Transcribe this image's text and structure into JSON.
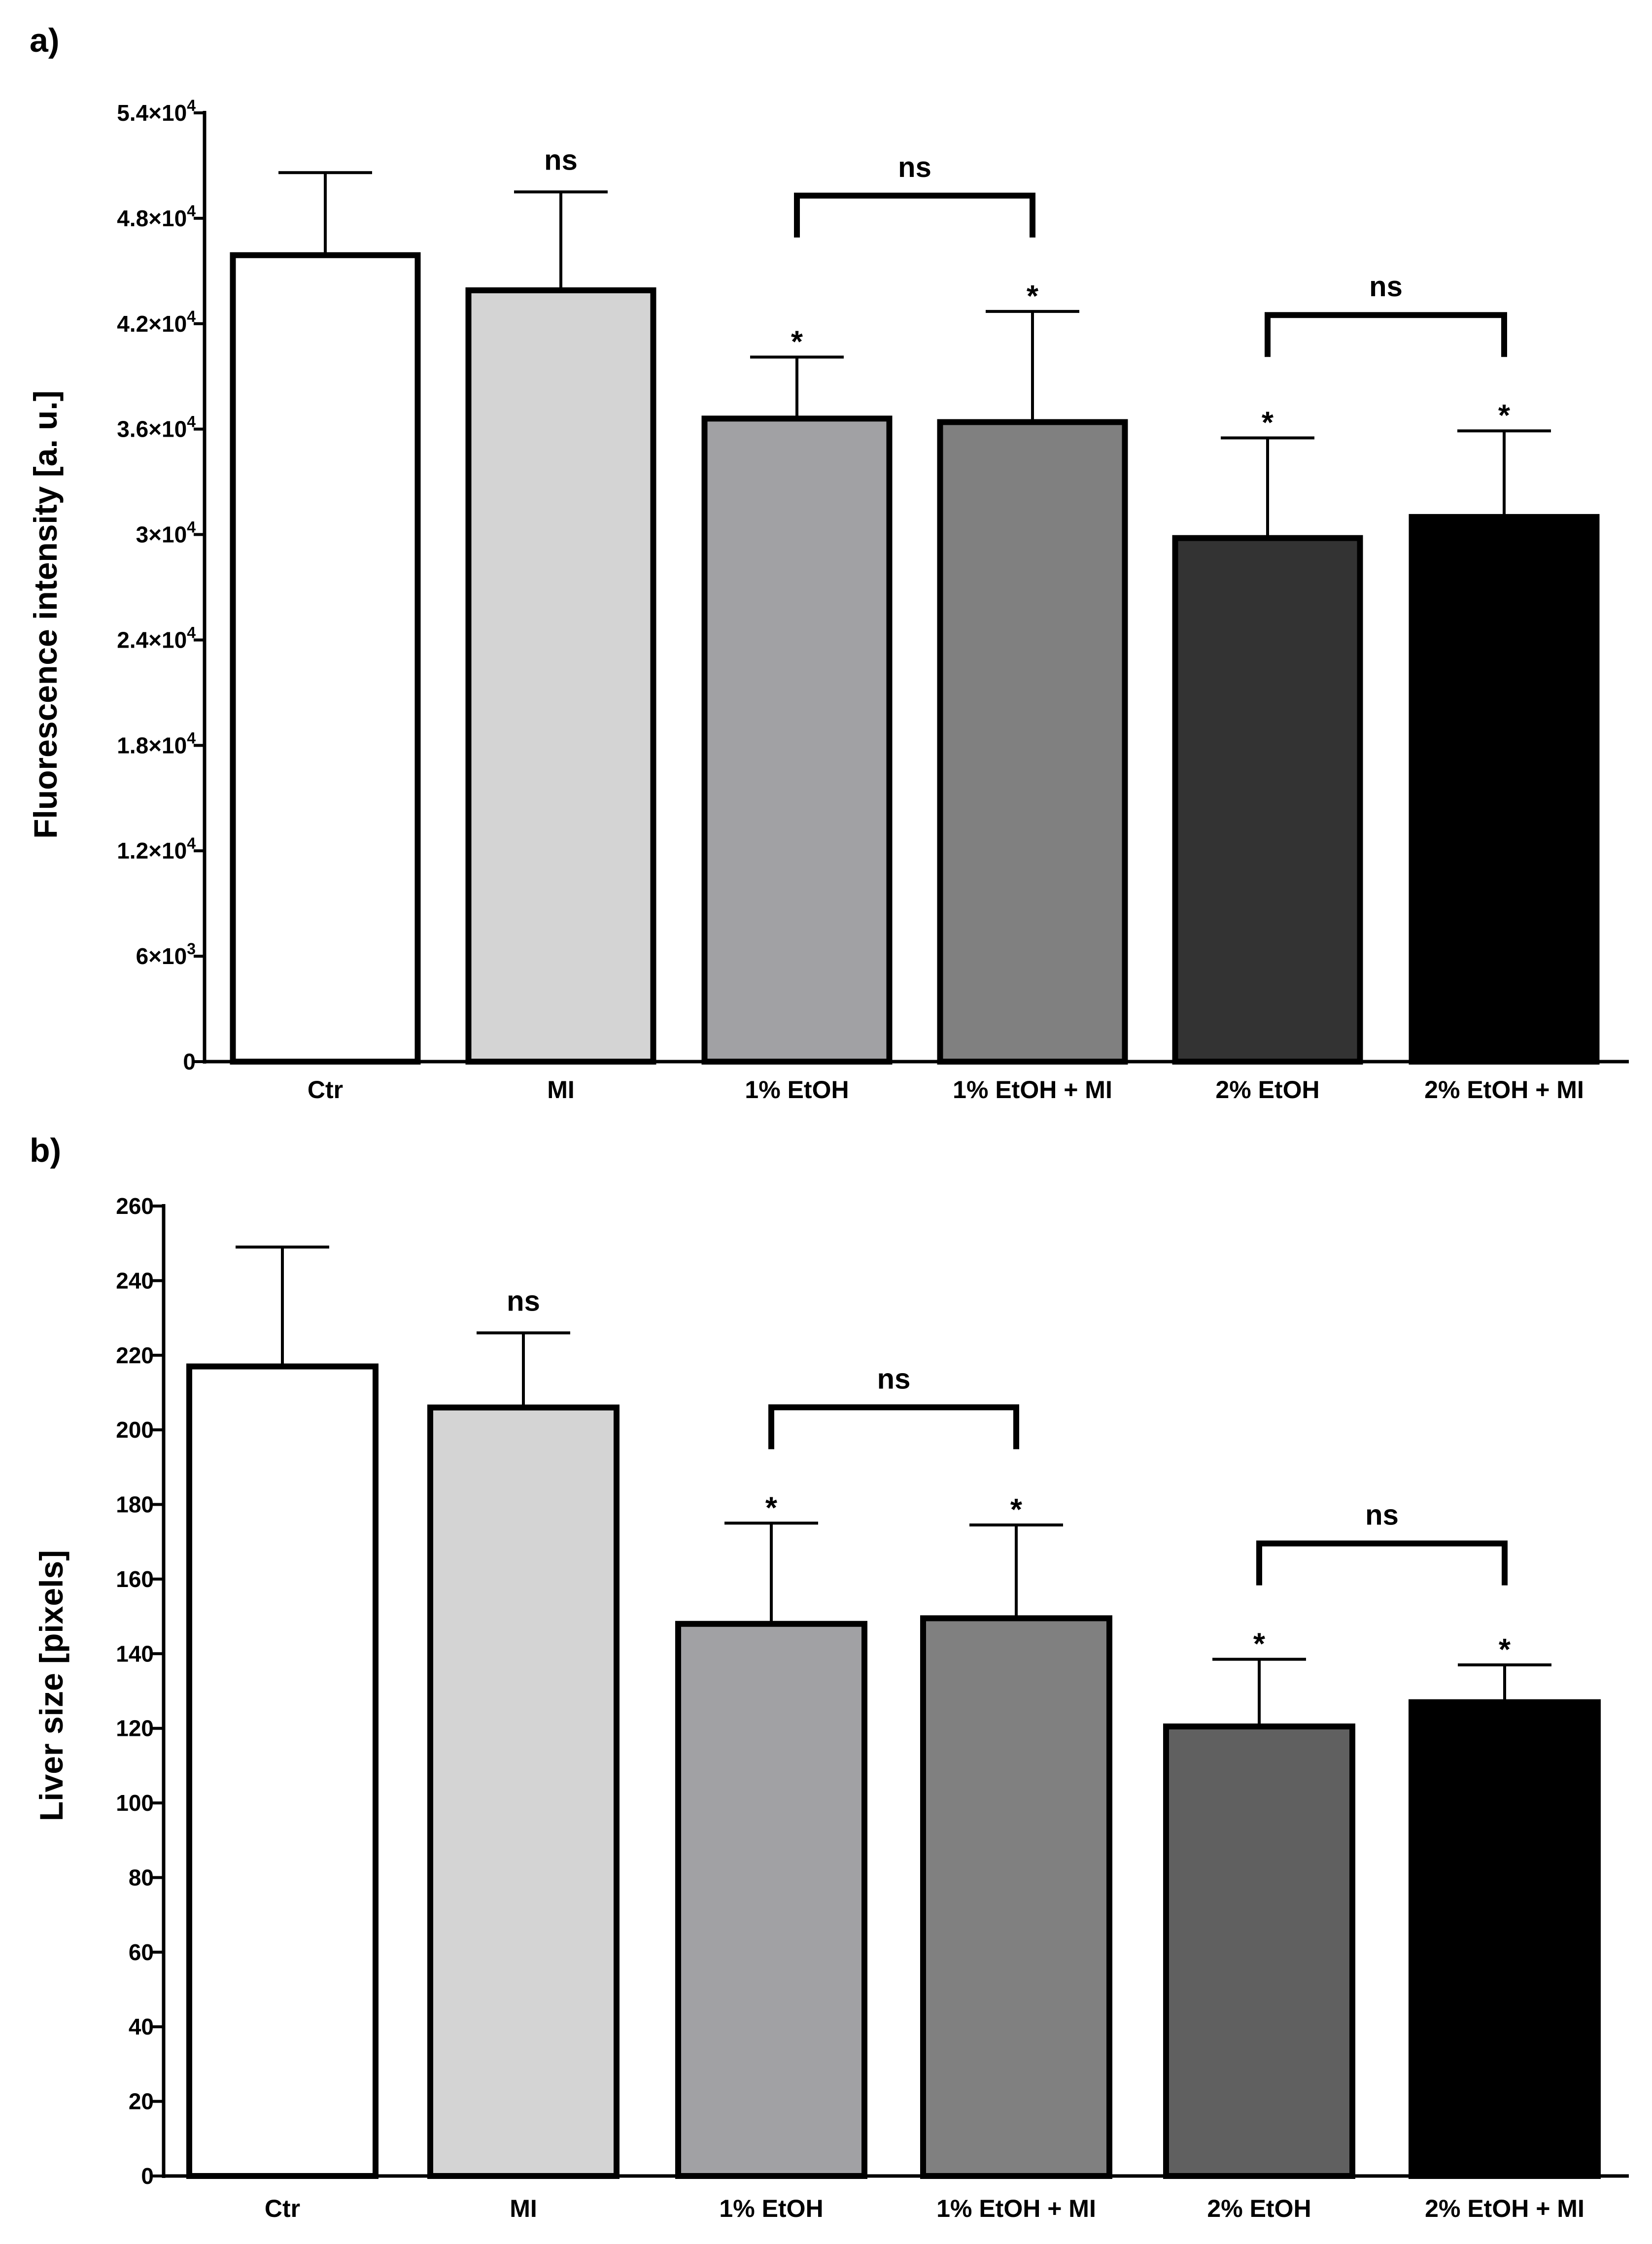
{
  "chart_data": [
    {
      "panel": "a)",
      "type": "bar",
      "ylabel": "Fluorescence intensity [a. u.]",
      "xlabel": "",
      "ylim": [
        0,
        54000
      ],
      "yticks": [
        0,
        6000,
        12000,
        18000,
        24000,
        30000,
        36000,
        42000,
        48000,
        54000
      ],
      "ytick_labels": [
        {
          "base": "0",
          "exp": ""
        },
        {
          "base": "6×10",
          "exp": "3"
        },
        {
          "base": "1.2×10",
          "exp": "4"
        },
        {
          "base": "1.8×10",
          "exp": "4"
        },
        {
          "base": "2.4×10",
          "exp": "4"
        },
        {
          "base": "3×10",
          "exp": "4"
        },
        {
          "base": "3.6×10",
          "exp": "4"
        },
        {
          "base": "4.2×10",
          "exp": "4"
        },
        {
          "base": "4.8×10",
          "exp": "4"
        },
        {
          "base": "5.4×10",
          "exp": "4"
        }
      ],
      "categories": [
        "Ctr",
        "MI",
        "1% EtOH",
        "1% EtOH + MI",
        "2% EtOH",
        "2% EtOH + MI"
      ],
      "values": [
        45900,
        43900,
        36600,
        36400,
        29800,
        31000
      ],
      "errors": [
        4700,
        5600,
        3500,
        6300,
        5700,
        4900
      ],
      "colors": [
        "#ffffff",
        "#d4d4d4",
        "#a1a1a4",
        "#808080",
        "#333333",
        "#000000"
      ],
      "star_label": "*",
      "annotations": [
        {
          "type": "text",
          "bar": 1,
          "text": "ns"
        },
        {
          "type": "star",
          "bar": 2
        },
        {
          "type": "star",
          "bar": 3
        },
        {
          "type": "star",
          "bar": 4
        },
        {
          "type": "star",
          "bar": 5
        },
        {
          "type": "bracket",
          "from": 2,
          "to": 3,
          "text": "ns"
        },
        {
          "type": "bracket",
          "from": 4,
          "to": 5,
          "text": "ns"
        }
      ]
    },
    {
      "panel": "b)",
      "type": "bar",
      "ylabel": "Liver size [pixels]",
      "xlabel": "",
      "ylim": [
        0,
        260
      ],
      "yticks": [
        0,
        20,
        40,
        60,
        80,
        100,
        120,
        140,
        160,
        180,
        200,
        220,
        240,
        260
      ],
      "ytick_labels": [
        {
          "base": "0",
          "exp": ""
        },
        {
          "base": "20",
          "exp": ""
        },
        {
          "base": "40",
          "exp": ""
        },
        {
          "base": "60",
          "exp": ""
        },
        {
          "base": "80",
          "exp": ""
        },
        {
          "base": "100",
          "exp": ""
        },
        {
          "base": "120",
          "exp": ""
        },
        {
          "base": "140",
          "exp": ""
        },
        {
          "base": "160",
          "exp": ""
        },
        {
          "base": "180",
          "exp": ""
        },
        {
          "base": "200",
          "exp": ""
        },
        {
          "base": "220",
          "exp": ""
        },
        {
          "base": "240",
          "exp": ""
        },
        {
          "base": "260",
          "exp": ""
        }
      ],
      "categories": [
        "Ctr",
        "MI",
        "1% EtOH",
        "1% EtOH + MI",
        "2% EtOH",
        "2% EtOH + MI"
      ],
      "values": [
        217,
        206,
        148,
        149.5,
        120.5,
        127
      ],
      "errors": [
        32,
        20,
        27,
        25,
        18,
        10
      ],
      "colors": [
        "#ffffff",
        "#d4d4d4",
        "#a1a1a4",
        "#808080",
        "#606060",
        "#000000"
      ],
      "star_label": "*",
      "annotations": [
        {
          "type": "text",
          "bar": 1,
          "text": "ns"
        },
        {
          "type": "star",
          "bar": 2
        },
        {
          "type": "star",
          "bar": 3
        },
        {
          "type": "star",
          "bar": 4
        },
        {
          "type": "star",
          "bar": 5
        },
        {
          "type": "bracket",
          "from": 2,
          "to": 3,
          "text": "ns"
        },
        {
          "type": "bracket",
          "from": 4,
          "to": 5,
          "text": "ns"
        }
      ]
    }
  ]
}
